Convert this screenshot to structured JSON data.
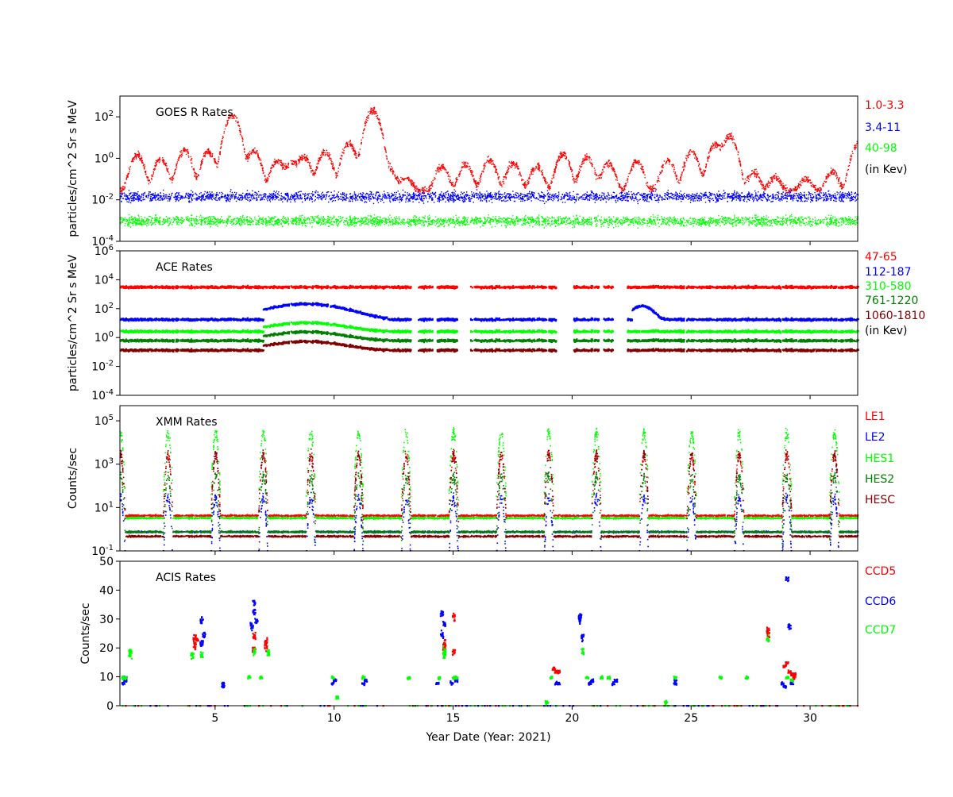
{
  "colors": {
    "red": "#ff0000",
    "blue": "#0000ff",
    "lime": "#00ff00",
    "green": "#008000",
    "darkred": "#800000",
    "black": "#000000"
  },
  "xaxis": {
    "label": "Year Date (Year: 2021)",
    "range": [
      1,
      32
    ],
    "ticks": [
      5,
      10,
      15,
      20,
      25,
      30
    ],
    "tick_labels": [
      "5",
      "10",
      "15",
      "20",
      "25",
      "30"
    ]
  },
  "chart_data": [
    {
      "type": "scatter",
      "title": "GOES R Rates",
      "ylabel": "particles/cm^2 Sr s MeV",
      "yscale": "log",
      "ylim": [
        0.0001,
        1000
      ],
      "yticks": [
        {
          "value": 100,
          "base": "10",
          "exp": "2"
        },
        {
          "value": 1,
          "base": "10",
          "exp": "0"
        },
        {
          "value": 0.01,
          "base": "10",
          "exp": "-2"
        },
        {
          "value": 0.0001,
          "base": "10",
          "exp": "-4"
        }
      ],
      "series": [
        {
          "name": "1.0-3.3",
          "color": "#ff0000",
          "baseline": 0.03,
          "peaks": [
            [
              1.7,
              1.5
            ],
            [
              2.7,
              0.9
            ],
            [
              3.7,
              2.5
            ],
            [
              4.7,
              2.2
            ],
            [
              5.7,
              120
            ],
            [
              6.6,
              2.5
            ],
            [
              7.6,
              0.8
            ],
            [
              8.2,
              0.6
            ],
            [
              8.7,
              1.2
            ],
            [
              9.6,
              2.1
            ],
            [
              10.6,
              5.5
            ],
            [
              11.6,
              200
            ],
            [
              12.3,
              0.3
            ],
            [
              13.0,
              0.1
            ],
            [
              14.5,
              0.4
            ],
            [
              15.5,
              0.5
            ],
            [
              16.5,
              0.8
            ],
            [
              17.5,
              0.6
            ],
            [
              18.5,
              0.4
            ],
            [
              19.6,
              1.6
            ],
            [
              20.6,
              1.1
            ],
            [
              21.5,
              0.6
            ],
            [
              22.7,
              0.7
            ],
            [
              24.0,
              0.8
            ],
            [
              25.0,
              2.2
            ],
            [
              26.0,
              5.0
            ],
            [
              26.6,
              12
            ],
            [
              27.6,
              0.2
            ],
            [
              28.5,
              0.1
            ],
            [
              29.8,
              0.08
            ],
            [
              30.9,
              0.2
            ],
            [
              32.0,
              5.0
            ]
          ]
        },
        {
          "name": "3.4-11",
          "color": "#0000ff",
          "baseline": 0.015,
          "peaks": []
        },
        {
          "name": "40-98",
          "color": "#00ff00",
          "baseline": 0.001,
          "peaks": []
        }
      ],
      "legend_note": "(in Kev)"
    },
    {
      "type": "scatter",
      "title": "ACE Rates",
      "ylabel": "particles/cm^2 Sr s MeV",
      "yscale": "log",
      "ylim": [
        0.0001,
        1000000
      ],
      "yticks": [
        {
          "value": 1000000,
          "base": "10",
          "exp": "6"
        },
        {
          "value": 10000,
          "base": "10",
          "exp": "4"
        },
        {
          "value": 100,
          "base": "10",
          "exp": "2"
        },
        {
          "value": 1,
          "base": "10",
          "exp": "0"
        },
        {
          "value": 0.01,
          "base": "10",
          "exp": "-2"
        },
        {
          "value": 0.0001,
          "base": "10",
          "exp": "-4"
        }
      ],
      "gaps": [
        [
          13.2,
          13.5
        ],
        [
          14.1,
          14.3
        ],
        [
          15.2,
          15.7
        ],
        [
          19.3,
          20.0
        ],
        [
          21.1,
          21.3
        ],
        [
          21.7,
          22.3
        ]
      ],
      "series": [
        {
          "name": "47-65",
          "color": "#ff0000",
          "baseline": 3500,
          "bump": 1.0
        },
        {
          "name": "112-187",
          "color": "#0000ff",
          "baseline": 20,
          "bump": 12.0
        },
        {
          "name": "310-580",
          "color": "#00ff00",
          "baseline": 3,
          "bump": 4.0
        },
        {
          "name": "761-1220",
          "color": "#008000",
          "baseline": 0.7,
          "bump": 4.0
        },
        {
          "name": "1060-1810",
          "color": "#800000",
          "baseline": 0.15,
          "bump": 4.0
        }
      ],
      "legend_note": "(in Kev)"
    },
    {
      "type": "scatter",
      "title": "XMM Rates",
      "ylabel": "Counts/sec",
      "yscale": "log",
      "ylim": [
        0.1,
        500000
      ],
      "yticks": [
        {
          "value": 100000,
          "base": "10",
          "exp": "5"
        },
        {
          "value": 1000,
          "base": "10",
          "exp": "3"
        },
        {
          "value": 10,
          "base": "10",
          "exp": "1"
        },
        {
          "value": 0.1,
          "base": "10",
          "exp": "-1"
        }
      ],
      "perigees": [
        1.0,
        3.0,
        5.0,
        7.0,
        9.0,
        11.0,
        13.0,
        15.0,
        17.0,
        19.0,
        21.0,
        23.0,
        25.0,
        27.0,
        29.0,
        31.0
      ],
      "series": [
        {
          "name": "LE1",
          "color": "#ff0000",
          "baseline": 4.5,
          "peak": 3000
        },
        {
          "name": "LE2",
          "color": "#0000ff",
          "baseline": 0.8,
          "peak": 30
        },
        {
          "name": "HES1",
          "color": "#00ff00",
          "baseline": 3.5,
          "peak": 30000
        },
        {
          "name": "HES2",
          "color": "#008000",
          "baseline": 0.8,
          "peak": 300
        },
        {
          "name": "HESC",
          "color": "#800000",
          "baseline": 0.5,
          "peak": 3000
        }
      ]
    },
    {
      "type": "scatter",
      "title": "ACIS Rates",
      "ylabel": "Counts/sec",
      "yscale": "linear",
      "ylim": [
        0,
        50
      ],
      "yticks": [
        {
          "value": 0,
          "label": "0"
        },
        {
          "value": 10,
          "label": "10"
        },
        {
          "value": 20,
          "label": "20"
        },
        {
          "value": 30,
          "label": "30"
        },
        {
          "value": 40,
          "label": "40"
        },
        {
          "value": 50,
          "label": "50"
        }
      ],
      "series": [
        {
          "name": "CCD5",
          "color": "#ff0000",
          "points": [
            [
              4.1,
              21
            ],
            [
              4.1,
              24
            ],
            [
              4.2,
              23
            ],
            [
              6.6,
              20
            ],
            [
              6.6,
              24
            ],
            [
              7.1,
              21
            ],
            [
              7.1,
              22
            ],
            [
              14.6,
              20
            ],
            [
              14.6,
              22
            ],
            [
              15.0,
              19
            ],
            [
              15.0,
              31
            ],
            [
              19.2,
              13
            ],
            [
              19.3,
              12
            ],
            [
              19.4,
              12
            ],
            [
              28.2,
              25
            ],
            [
              28.2,
              26
            ],
            [
              28.9,
              14
            ],
            [
              29.0,
              15
            ],
            [
              29.1,
              12
            ],
            [
              29.2,
              11
            ],
            [
              29.3,
              10
            ],
            [
              29.3,
              11
            ]
          ]
        },
        {
          "name": "CCD6",
          "color": "#0000ff",
          "points": [
            [
              1.1,
              8
            ],
            [
              1.2,
              9
            ],
            [
              1.2,
              10
            ],
            [
              4.4,
              22
            ],
            [
              4.4,
              30
            ],
            [
              4.5,
              25
            ],
            [
              5.3,
              7
            ],
            [
              5.3,
              8
            ],
            [
              6.5,
              28
            ],
            [
              6.6,
              33
            ],
            [
              6.6,
              36
            ],
            [
              6.7,
              30
            ],
            [
              9.9,
              8
            ],
            [
              10.0,
              9
            ],
            [
              11.2,
              8
            ],
            [
              11.3,
              9
            ],
            [
              14.3,
              8
            ],
            [
              14.5,
              25
            ],
            [
              14.5,
              32
            ],
            [
              14.6,
              29
            ],
            [
              14.9,
              8
            ],
            [
              15.1,
              9
            ],
            [
              19.3,
              8
            ],
            [
              19.4,
              8
            ],
            [
              20.3,
              30
            ],
            [
              20.3,
              31
            ],
            [
              20.4,
              24
            ],
            [
              20.7,
              8
            ],
            [
              20.8,
              9
            ],
            [
              21.7,
              8
            ],
            [
              21.8,
              9
            ],
            [
              24.3,
              8
            ],
            [
              24.3,
              9
            ],
            [
              28.8,
              8
            ],
            [
              28.9,
              7
            ],
            [
              29.0,
              44
            ],
            [
              29.1,
              28
            ],
            [
              29.2,
              8
            ]
          ]
        },
        {
          "name": "CCD7",
          "color": "#00ff00",
          "points": [
            [
              1.1,
              10
            ],
            [
              1.2,
              10
            ],
            [
              1.4,
              18
            ],
            [
              1.4,
              19
            ],
            [
              4.0,
              18
            ],
            [
              4.4,
              18
            ],
            [
              6.4,
              10
            ],
            [
              6.6,
              19
            ],
            [
              6.9,
              10
            ],
            [
              7.2,
              19
            ],
            [
              9.9,
              10
            ],
            [
              10.1,
              3
            ],
            [
              11.2,
              10
            ],
            [
              13.1,
              10
            ],
            [
              14.4,
              10
            ],
            [
              14.6,
              18
            ],
            [
              14.6,
              19
            ],
            [
              15.0,
              10
            ],
            [
              15.1,
              10
            ],
            [
              18.9,
              1.5
            ],
            [
              19.1,
              10
            ],
            [
              20.4,
              19
            ],
            [
              20.6,
              10
            ],
            [
              21.2,
              10
            ],
            [
              21.5,
              10
            ],
            [
              23.9,
              1.5
            ],
            [
              24.3,
              10
            ],
            [
              26.2,
              10
            ],
            [
              27.3,
              10
            ],
            [
              28.2,
              23
            ],
            [
              29.0,
              10
            ],
            [
              29.2,
              9
            ]
          ]
        }
      ]
    }
  ]
}
